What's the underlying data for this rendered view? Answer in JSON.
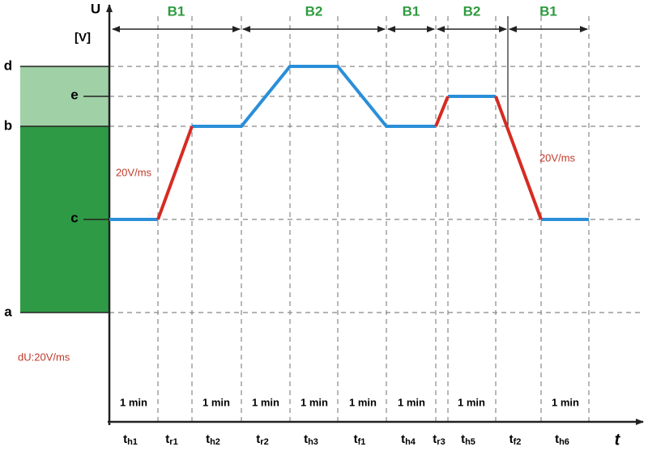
{
  "axis": {
    "y_label": "U",
    "y_unit": "[V]",
    "x_label": "t"
  },
  "phases": [
    {
      "label": "B1"
    },
    {
      "label": "B2"
    },
    {
      "label": "B1"
    },
    {
      "label": "B2"
    },
    {
      "label": "B1"
    }
  ],
  "levels": [
    {
      "label": "d"
    },
    {
      "label": "e"
    },
    {
      "label": "b"
    },
    {
      "label": "c"
    },
    {
      "label": "a"
    }
  ],
  "rates": [
    "20V/ms",
    "20V/ms"
  ],
  "note": "dU:20V/ms",
  "durations": [
    "1 min",
    "1 min",
    "1 min",
    "1 min",
    "1 min",
    "1 min",
    "1 min",
    "1 min"
  ],
  "intervals": [
    {
      "main": "t",
      "sub": "h1"
    },
    {
      "main": "t",
      "sub": "r1"
    },
    {
      "main": "t",
      "sub": "h2"
    },
    {
      "main": "t",
      "sub": "r2"
    },
    {
      "main": "t",
      "sub": "h3"
    },
    {
      "main": "t",
      "sub": "f1"
    },
    {
      "main": "t",
      "sub": "h4"
    },
    {
      "main": "t",
      "sub": "r3"
    },
    {
      "main": "t",
      "sub": "h5"
    },
    {
      "main": "t",
      "sub": "f2"
    },
    {
      "main": "t",
      "sub": "h6"
    }
  ]
}
